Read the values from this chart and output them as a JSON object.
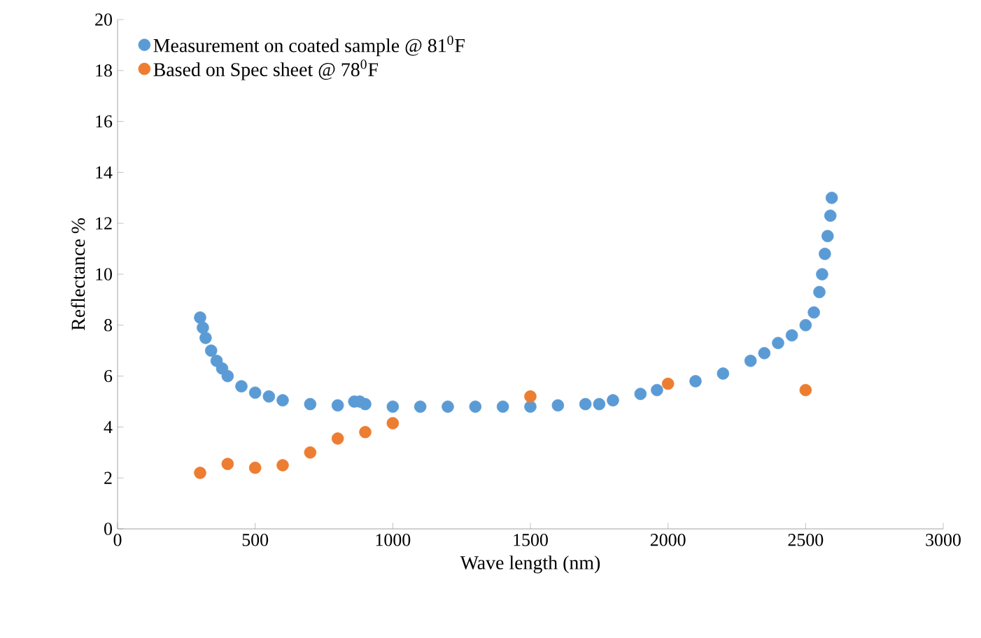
{
  "chart_data": {
    "type": "scatter",
    "xlabel": "Wave length (nm)",
    "ylabel": "Reflectance %",
    "xlim": [
      0,
      3000
    ],
    "ylim": [
      0,
      20
    ],
    "xticks": [
      0,
      500,
      1000,
      1500,
      2000,
      2500,
      3000
    ],
    "yticks": [
      0,
      2,
      4,
      6,
      8,
      10,
      12,
      14,
      16,
      18,
      20
    ],
    "grid": false,
    "legend": "top left",
    "series": [
      {
        "name": "Measurement on coated sample @ 81$^{0}$F",
        "color": "#5b9bd5",
        "x": [
          300,
          310,
          320,
          340,
          360,
          380,
          400,
          450,
          500,
          550,
          600,
          700,
          800,
          860,
          880,
          900,
          1000,
          1100,
          1200,
          1300,
          1400,
          1500,
          1600,
          1700,
          1750,
          1800,
          1900,
          1960,
          2100,
          2200,
          2300,
          2350,
          2400,
          2450,
          2500,
          2530,
          2550,
          2560,
          2570,
          2580,
          2590,
          2595
        ],
        "values": [
          8.3,
          7.9,
          7.5,
          7.0,
          6.6,
          6.3,
          6.0,
          5.6,
          5.35,
          5.2,
          5.05,
          4.9,
          4.85,
          5.0,
          5.0,
          4.9,
          4.8,
          4.8,
          4.8,
          4.8,
          4.8,
          4.8,
          4.85,
          4.9,
          4.9,
          5.05,
          5.3,
          5.45,
          5.8,
          6.1,
          6.6,
          6.9,
          7.3,
          7.6,
          8.0,
          8.5,
          9.3,
          10.0,
          10.8,
          11.5,
          12.3,
          13.0
        ]
      },
      {
        "name": "Based on Spec sheet @ 78$^{0}$F",
        "color": "#ed7d31",
        "x": [
          300,
          400,
          500,
          600,
          700,
          800,
          900,
          1000,
          1500,
          2000,
          2500
        ],
        "values": [
          2.2,
          2.55,
          2.4,
          2.5,
          3.0,
          3.55,
          3.8,
          4.15,
          5.2,
          5.7,
          5.45
        ]
      }
    ]
  }
}
